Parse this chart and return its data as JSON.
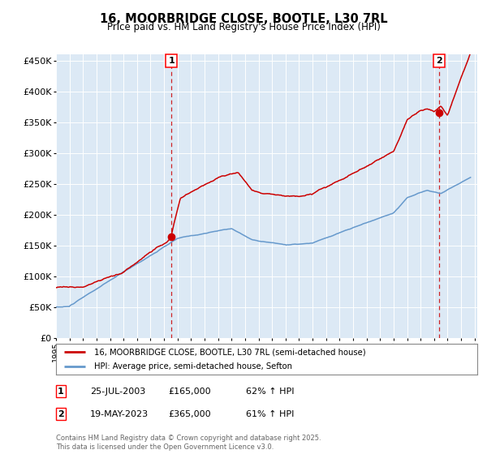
{
  "title": "16, MOORBRIDGE CLOSE, BOOTLE, L30 7RL",
  "subtitle": "Price paid vs. HM Land Registry's House Price Index (HPI)",
  "background_color": "#dce9f5",
  "plot_bg_color": "#dce9f5",
  "red_line_label": "16, MOORBRIDGE CLOSE, BOOTLE, L30 7RL (semi-detached house)",
  "blue_line_label": "HPI: Average price, semi-detached house, Sefton",
  "red_color": "#cc0000",
  "blue_color": "#6699cc",
  "marker1_date": 2003.56,
  "marker1_value": 165000,
  "marker2_date": 2023.38,
  "marker2_value": 365000,
  "annotation1": "1",
  "annotation2": "2",
  "ann1_label": "25-JUL-2003",
  "ann1_price": "£165,000",
  "ann1_pct": "62% ↑ HPI",
  "ann2_label": "19-MAY-2023",
  "ann2_price": "£365,000",
  "ann2_pct": "61% ↑ HPI",
  "copyright": "Contains HM Land Registry data © Crown copyright and database right 2025.\nThis data is licensed under the Open Government Licence v3.0.",
  "ylim": [
    0,
    460000
  ],
  "xlim_start": 1995.0,
  "xlim_end": 2026.2
}
